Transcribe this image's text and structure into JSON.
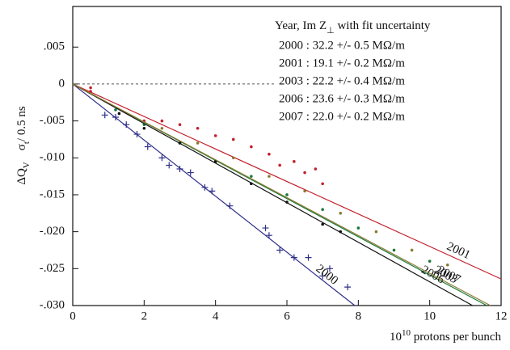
{
  "chart_data": {
    "type": "scatter",
    "y_label_parts": [
      "ΔQ",
      "V",
      "σ",
      "t",
      "/ 0.5 ns"
    ],
    "x_label_parts": [
      "10",
      "10",
      " protons per bunch"
    ],
    "legend_title_parts": [
      "Year,  Im Z",
      "⊥",
      " with fit uncertainty"
    ],
    "xlim": [
      0,
      12
    ],
    "xticks": [
      0,
      2,
      4,
      6,
      8,
      10,
      12
    ],
    "ylim": [
      -0.03,
      0.0105
    ],
    "yticks": [
      {
        "value": 0.005,
        "label": ".005"
      },
      0,
      {
        "value": -0.005,
        "label": "-.005"
      },
      {
        "value": -0.01,
        "label": "-.010"
      },
      {
        "value": -0.015,
        "label": "-.015"
      },
      {
        "value": -0.02,
        "label": "-.020"
      },
      {
        "value": -0.025,
        "label": "-.025"
      },
      {
        "value": -0.03,
        "label": "-.030"
      }
    ],
    "zero_line": true,
    "series": [
      {
        "name": "2000 :  32.2 +/- 0.5 MΩ/m",
        "line_label": "2000",
        "color": "#2e2e8a",
        "marker": "plus",
        "x": [
          0.9,
          1.2,
          1.5,
          1.8,
          2.1,
          2.5,
          2.7,
          3.0,
          3.3,
          3.7,
          3.9,
          4.4,
          5.4,
          5.5,
          5.8,
          6.2,
          6.6,
          7.0,
          7.2,
          7.7
        ],
        "values": [
          -0.0042,
          -0.0045,
          -0.0055,
          -0.0068,
          -0.0085,
          -0.01,
          -0.011,
          -0.0115,
          -0.012,
          -0.014,
          -0.0145,
          -0.0165,
          -0.0195,
          -0.0205,
          -0.0225,
          -0.0235,
          -0.0235,
          -0.026,
          -0.025,
          -0.0275
        ],
        "fit": {
          "x": [
            0,
            7.9
          ],
          "values": [
            0,
            -0.03
          ]
        }
      },
      {
        "name": "2001 :  19.1 +/- 0.2 MΩ/m",
        "line_label": "2001",
        "color": "#c4202c",
        "marker": "dot",
        "x": [
          0.5,
          0.5,
          2.0,
          2.5,
          3.0,
          3.5,
          4.0,
          4.5,
          5.0,
          5.5,
          5.8,
          6.2,
          6.5,
          6.8,
          7.0
        ],
        "values": [
          -0.0005,
          -0.001,
          -0.005,
          -0.005,
          -0.0055,
          -0.006,
          -0.007,
          -0.0075,
          -0.0085,
          -0.0095,
          -0.011,
          -0.0105,
          -0.012,
          -0.0115,
          -0.0135
        ],
        "fit": {
          "x": [
            0,
            12
          ],
          "values": [
            0,
            -0.0264
          ]
        }
      },
      {
        "name": "2003 :  22.2 +/- 0.4 MΩ/m",
        "line_label": "2003",
        "color": "#1a7a3a",
        "marker": "dot",
        "x": [
          1.2,
          2,
          3,
          4,
          5,
          6,
          7,
          8,
          9,
          10
        ],
        "values": [
          -0.0035,
          -0.0055,
          -0.008,
          -0.0105,
          -0.0125,
          -0.015,
          -0.017,
          -0.0195,
          -0.0225,
          -0.024
        ],
        "fit": {
          "x": [
            0,
            11.6
          ],
          "values": [
            0,
            -0.03
          ]
        }
      },
      {
        "name": "2006 :  23.6 +/- 0.3 MΩ/m",
        "line_label": "2006",
        "color": "#111111",
        "marker": "dot",
        "x": [
          1.3,
          2,
          3,
          4,
          5,
          6,
          7,
          7.5
        ],
        "values": [
          -0.004,
          -0.006,
          -0.008,
          -0.0105,
          -0.0135,
          -0.016,
          -0.019,
          -0.02
        ],
        "fit": {
          "x": [
            0,
            11.2
          ],
          "values": [
            0,
            -0.03
          ]
        }
      },
      {
        "name": "2007 :  22.0 +/- 0.2 MΩ/m",
        "line_label": "2007",
        "color": "#8a7a30",
        "marker": "dot",
        "x": [
          2.5,
          3.5,
          4.5,
          5.5,
          6.5,
          7.5,
          8.5,
          9.5,
          10.5
        ],
        "values": [
          -0.006,
          -0.008,
          -0.01,
          -0.0125,
          -0.0145,
          -0.0175,
          -0.02,
          -0.0225,
          -0.0245
        ],
        "fit": {
          "x": [
            0,
            11.7
          ],
          "values": [
            0,
            -0.03
          ]
        }
      }
    ]
  }
}
